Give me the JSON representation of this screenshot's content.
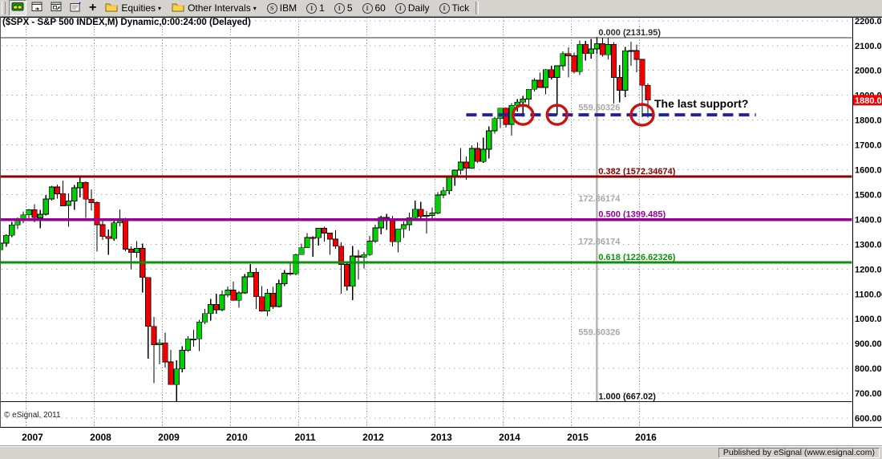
{
  "toolbar": {
    "quote_board_button": {
      "name": "quote-board"
    },
    "window_buttons": [
      {
        "name": "new-chart-window"
      },
      {
        "name": "duplicate-window"
      },
      {
        "name": "chart-properties"
      }
    ],
    "add_button_glyph": "+",
    "equities_label": "Equities",
    "other_intervals_label": "Other Intervals",
    "symbol_shortcut": {
      "badge": "S",
      "label": "IBM"
    },
    "interval_shortcuts": [
      {
        "badge": "I",
        "label": "1"
      },
      {
        "badge": "I",
        "label": "5"
      },
      {
        "badge": "I",
        "label": "60"
      },
      {
        "badge": "I",
        "label": "Daily"
      },
      {
        "badge": "I",
        "label": "Tick"
      }
    ]
  },
  "chart": {
    "title": "($SPX - S&P 500 INDEX,M) Dynamic,0:00:24:00 (Delayed)",
    "watermark": "© eSignal, 2011",
    "annotation": "The last support?",
    "last_price_label": "1880.05"
  },
  "statusbar": {
    "published_by": "Published by eSignal (www.esignal.com)"
  },
  "colors": {
    "up": "#00d000",
    "down": "#f00000",
    "candle_outline": "#000000",
    "wick": "#000000",
    "support_line": "#2121a3",
    "highlight_circle": "#cc1111",
    "fib_0": "#303030",
    "fib_382": "#8b0000",
    "fib_500": "#990099",
    "fib_618": "#0a930a",
    "fib_100": "#111111",
    "interval_label": "#a8a8a8",
    "fib_anchor_line": "#b4b4b4",
    "last_price_bg": "#f40000",
    "last_price_fg": "#ffffff",
    "h_grid": "#9b9b9b",
    "v_grid": "#8c8c8c",
    "axis_text": "#000000",
    "border": "#000000"
  },
  "chart_data": {
    "type": "candlestick",
    "symbol": "$SPX",
    "description": "S&P 500 INDEX, Monthly",
    "title": "($SPX - S&P 500 INDEX,M) Dynamic,0:00:24:00 (Delayed)",
    "ylim": [
      600,
      2200
    ],
    "y_tick_step": 100,
    "years": [
      2007,
      2008,
      2009,
      2010,
      2011,
      2012,
      2013,
      2014,
      2015,
      2016
    ],
    "last_price": 1880.05,
    "fibonacci": {
      "anchor_month": "2015-05",
      "levels": [
        {
          "ratio": 0.0,
          "price": 2131.95,
          "label": "0.000 (2131.95)",
          "color_key": "fib_0",
          "width": 1
        },
        {
          "ratio": 0.382,
          "price": 1572.34674,
          "label": "0.382 (1572.34674)",
          "color_key": "fib_382",
          "width": 3
        },
        {
          "ratio": 0.5,
          "price": 1399.485,
          "label": "0.500 (1399.485)",
          "color_key": "fib_500",
          "width": 3.5
        },
        {
          "ratio": 0.618,
          "price": 1226.62326,
          "label": "0.618 (1226.62326)",
          "color_key": "fib_618",
          "width": 3
        },
        {
          "ratio": 1.0,
          "price": 667.02,
          "label": "1.000 (667.02)",
          "color_key": "fib_100",
          "width": 1
        }
      ],
      "interval_labels": [
        "559.60326",
        "172.86174",
        "172.86174",
        "559.60326"
      ]
    },
    "support_line": {
      "price": 1821,
      "from_month": "2013-06",
      "to_month": "2017-09",
      "style": "dashed"
    },
    "highlight_circles": [
      {
        "month": "2014-04"
      },
      {
        "month": "2014-10"
      },
      {
        "month": "2016-01"
      }
    ],
    "candles": [
      [
        "2006-08",
        1278,
        1306,
        1262,
        1304
      ],
      [
        "2006-09",
        1304,
        1340,
        1290,
        1336
      ],
      [
        "2006-10",
        1336,
        1390,
        1328,
        1378
      ],
      [
        "2006-11",
        1378,
        1407,
        1361,
        1401
      ],
      [
        "2006-12",
        1401,
        1432,
        1385,
        1418
      ],
      [
        "2007-01",
        1418,
        1441,
        1404,
        1438
      ],
      [
        "2007-02",
        1438,
        1461,
        1389,
        1407
      ],
      [
        "2007-03",
        1406,
        1438,
        1364,
        1421
      ],
      [
        "2007-04",
        1421,
        1498,
        1416,
        1482
      ],
      [
        "2007-05",
        1482,
        1535,
        1476,
        1531
      ],
      [
        "2007-06",
        1531,
        1540,
        1484,
        1503
      ],
      [
        "2007-07",
        1504,
        1556,
        1455,
        1455
      ],
      [
        "2007-08",
        1456,
        1504,
        1371,
        1474
      ],
      [
        "2007-09",
        1474,
        1539,
        1439,
        1527
      ],
      [
        "2007-10",
        1527,
        1576,
        1489,
        1549
      ],
      [
        "2007-11",
        1549,
        1553,
        1406,
        1481
      ],
      [
        "2007-12",
        1481,
        1521,
        1436,
        1468
      ],
      [
        "2008-01",
        1468,
        1472,
        1270,
        1379
      ],
      [
        "2008-02",
        1379,
        1396,
        1317,
        1331
      ],
      [
        "2008-03",
        1331,
        1360,
        1257,
        1323
      ],
      [
        "2008-04",
        1323,
        1397,
        1314,
        1386
      ],
      [
        "2008-05",
        1386,
        1440,
        1373,
        1400
      ],
      [
        "2008-06",
        1400,
        1406,
        1272,
        1280
      ],
      [
        "2008-07",
        1280,
        1292,
        1200,
        1267
      ],
      [
        "2008-08",
        1267,
        1313,
        1247,
        1283
      ],
      [
        "2008-09",
        1283,
        1303,
        1106,
        1166
      ],
      [
        "2008-10",
        1166,
        1167,
        839,
        969
      ],
      [
        "2008-11",
        969,
        1007,
        741,
        896
      ],
      [
        "2008-12",
        896,
        918,
        816,
        903
      ],
      [
        "2009-01",
        903,
        944,
        804,
        826
      ],
      [
        "2009-02",
        826,
        875,
        735,
        735
      ],
      [
        "2009-03",
        735,
        833,
        667,
        798
      ],
      [
        "2009-04",
        798,
        889,
        784,
        873
      ],
      [
        "2009-05",
        873,
        930,
        866,
        919
      ],
      [
        "2009-06",
        919,
        956,
        888,
        919
      ],
      [
        "2009-07",
        919,
        996,
        869,
        987
      ],
      [
        "2009-08",
        987,
        1039,
        978,
        1021
      ],
      [
        "2009-09",
        1021,
        1080,
        992,
        1057
      ],
      [
        "2009-10",
        1057,
        1101,
        1020,
        1036
      ],
      [
        "2009-11",
        1036,
        1113,
        1029,
        1096
      ],
      [
        "2009-12",
        1096,
        1130,
        1086,
        1115
      ],
      [
        "2010-01",
        1115,
        1150,
        1071,
        1074
      ],
      [
        "2010-02",
        1074,
        1112,
        1045,
        1104
      ],
      [
        "2010-03",
        1104,
        1180,
        1101,
        1169
      ],
      [
        "2010-04",
        1169,
        1220,
        1168,
        1187
      ],
      [
        "2010-05",
        1187,
        1205,
        1040,
        1089
      ],
      [
        "2010-06",
        1089,
        1131,
        1028,
        1031
      ],
      [
        "2010-07",
        1031,
        1121,
        1011,
        1102
      ],
      [
        "2010-08",
        1102,
        1129,
        1040,
        1049
      ],
      [
        "2010-09",
        1049,
        1157,
        1046,
        1141
      ],
      [
        "2010-10",
        1141,
        1196,
        1131,
        1183
      ],
      [
        "2010-11",
        1183,
        1227,
        1173,
        1181
      ],
      [
        "2010-12",
        1181,
        1262,
        1175,
        1258
      ],
      [
        "2011-01",
        1258,
        1302,
        1257,
        1286
      ],
      [
        "2011-02",
        1286,
        1344,
        1286,
        1327
      ],
      [
        "2011-03",
        1327,
        1332,
        1249,
        1326
      ],
      [
        "2011-04",
        1326,
        1364,
        1294,
        1364
      ],
      [
        "2011-05",
        1364,
        1371,
        1311,
        1345
      ],
      [
        "2011-06",
        1345,
        1346,
        1258,
        1321
      ],
      [
        "2011-07",
        1321,
        1356,
        1282,
        1292
      ],
      [
        "2011-08",
        1292,
        1307,
        1101,
        1219
      ],
      [
        "2011-09",
        1219,
        1230,
        1114,
        1131
      ],
      [
        "2011-10",
        1131,
        1293,
        1075,
        1253
      ],
      [
        "2011-11",
        1253,
        1277,
        1158,
        1247
      ],
      [
        "2011-12",
        1247,
        1269,
        1202,
        1258
      ],
      [
        "2012-01",
        1258,
        1333,
        1252,
        1312
      ],
      [
        "2012-02",
        1312,
        1378,
        1305,
        1366
      ],
      [
        "2012-03",
        1366,
        1414,
        1340,
        1408
      ],
      [
        "2012-04",
        1408,
        1422,
        1358,
        1398
      ],
      [
        "2012-05",
        1398,
        1415,
        1292,
        1310
      ],
      [
        "2012-06",
        1310,
        1363,
        1267,
        1362
      ],
      [
        "2012-07",
        1362,
        1392,
        1325,
        1379
      ],
      [
        "2012-08",
        1379,
        1427,
        1354,
        1407
      ],
      [
        "2012-09",
        1407,
        1475,
        1397,
        1441
      ],
      [
        "2012-10",
        1441,
        1471,
        1403,
        1412
      ],
      [
        "2012-11",
        1412,
        1434,
        1343,
        1416
      ],
      [
        "2012-12",
        1416,
        1448,
        1398,
        1426
      ],
      [
        "2013-01",
        1426,
        1510,
        1420,
        1498
      ],
      [
        "2013-02",
        1498,
        1531,
        1485,
        1515
      ],
      [
        "2013-03",
        1515,
        1570,
        1501,
        1569
      ],
      [
        "2013-04",
        1569,
        1598,
        1536,
        1598
      ],
      [
        "2013-05",
        1598,
        1687,
        1581,
        1631
      ],
      [
        "2013-06",
        1631,
        1654,
        1560,
        1606
      ],
      [
        "2013-07",
        1606,
        1699,
        1604,
        1686
      ],
      [
        "2013-08",
        1686,
        1710,
        1628,
        1633
      ],
      [
        "2013-09",
        1633,
        1730,
        1627,
        1682
      ],
      [
        "2013-10",
        1682,
        1775,
        1646,
        1757
      ],
      [
        "2013-11",
        1757,
        1813,
        1746,
        1806
      ],
      [
        "2013-12",
        1806,
        1849,
        1768,
        1848
      ],
      [
        "2014-01",
        1848,
        1851,
        1770,
        1783
      ],
      [
        "2014-02",
        1783,
        1868,
        1738,
        1859
      ],
      [
        "2014-03",
        1859,
        1884,
        1834,
        1872
      ],
      [
        "2014-04",
        1872,
        1897,
        1814,
        1884
      ],
      [
        "2014-05",
        1884,
        1924,
        1859,
        1924
      ],
      [
        "2014-06",
        1924,
        1968,
        1915,
        1960
      ],
      [
        "2014-07",
        1960,
        1991,
        1930,
        1931
      ],
      [
        "2014-08",
        1931,
        2005,
        1904,
        2003
      ],
      [
        "2014-09",
        2003,
        2019,
        1964,
        1972
      ],
      [
        "2014-10",
        1972,
        2018,
        1820,
        2018
      ],
      [
        "2014-11",
        2018,
        2076,
        2001,
        2068
      ],
      [
        "2014-12",
        2068,
        2093,
        1972,
        2059
      ],
      [
        "2015-01",
        2059,
        2072,
        1988,
        1995
      ],
      [
        "2015-02",
        1995,
        2120,
        1981,
        2105
      ],
      [
        "2015-03",
        2105,
        2118,
        2040,
        2068
      ],
      [
        "2015-04",
        2068,
        2126,
        2048,
        2086
      ],
      [
        "2015-05",
        2086,
        2135,
        2067,
        2107
      ],
      [
        "2015-06",
        2107,
        2130,
        2056,
        2063
      ],
      [
        "2015-07",
        2063,
        2133,
        2044,
        2104
      ],
      [
        "2015-08",
        2104,
        2113,
        1867,
        1972
      ],
      [
        "2015-09",
        1972,
        2021,
        1871,
        1920
      ],
      [
        "2015-10",
        1920,
        2094,
        1893,
        2079
      ],
      [
        "2015-11",
        2079,
        2116,
        2019,
        2080
      ],
      [
        "2015-12",
        2080,
        2104,
        1993,
        2044
      ],
      [
        "2016-01",
        2044,
        2044,
        1812,
        1940
      ],
      [
        "2016-02",
        1940,
        1947,
        1810,
        1880
      ]
    ]
  }
}
